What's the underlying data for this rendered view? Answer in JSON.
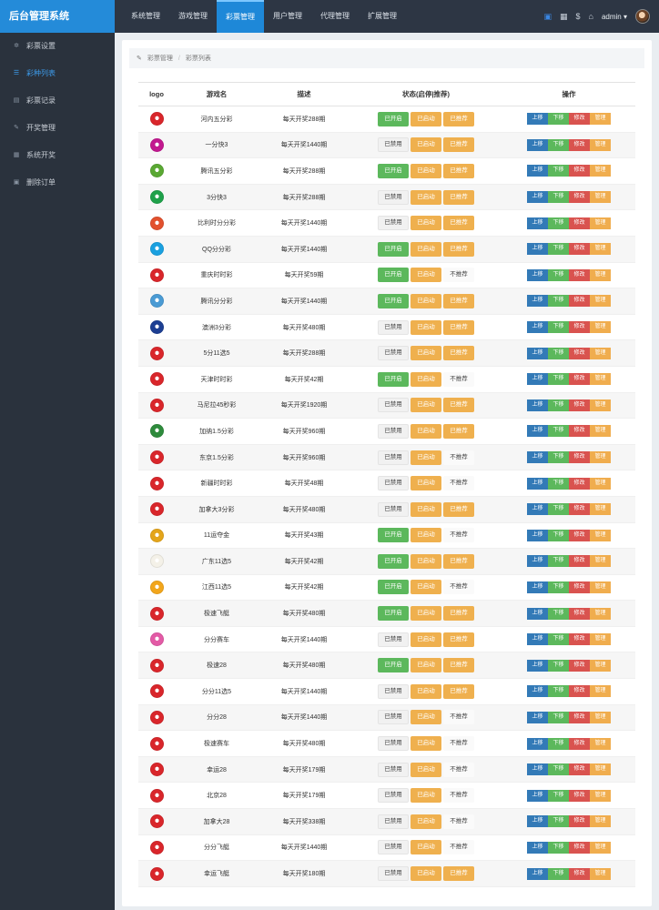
{
  "app": {
    "title": "后台管理系统"
  },
  "topnav": [
    {
      "label": "系统管理",
      "active": false
    },
    {
      "label": "游戏管理",
      "active": false
    },
    {
      "label": "彩票管理",
      "active": true
    },
    {
      "label": "用户管理",
      "active": false
    },
    {
      "label": "代理管理",
      "active": false
    },
    {
      "label": "扩展管理",
      "active": false
    }
  ],
  "header": {
    "user": "admin",
    "dollar": "$",
    "caret": "▾"
  },
  "sidebar": [
    {
      "label": "彩票设置",
      "icon": "✲",
      "active": false
    },
    {
      "label": "彩种列表",
      "icon": "☰",
      "active": true
    },
    {
      "label": "彩票记录",
      "icon": "▤",
      "active": false
    },
    {
      "label": "开奖管理",
      "icon": "✎",
      "active": false
    },
    {
      "label": "系统开奖",
      "icon": "▦",
      "active": false
    },
    {
      "label": "删除订单",
      "icon": "▣",
      "active": false
    }
  ],
  "breadcrumb": {
    "icon": "✎",
    "root": "彩票管理",
    "sep": "/",
    "current": "彩票列表"
  },
  "table": {
    "headers": {
      "logo": "logo",
      "name": "游戏名",
      "desc": "描述",
      "status": "状态(启停|推荐)",
      "ops": "操作"
    },
    "buttons": {
      "up": "上移",
      "down": "下移",
      "edit": "修改",
      "manage": "管理"
    },
    "status_labels": {
      "on": "已开启",
      "off": "已禁用",
      "launched": "已启动",
      "rec": "已推荐",
      "norec": "不推荐"
    },
    "rows": [
      {
        "name": "河内五分彩",
        "desc": "每天开奖288期",
        "enabled": true,
        "recommended": true,
        "logo_color": "#d9262b"
      },
      {
        "name": "一分快3",
        "desc": "每天开奖1440期",
        "enabled": false,
        "recommended": true,
        "logo_color": "#c2188f"
      },
      {
        "name": "腾讯五分彩",
        "desc": "每天开奖288期",
        "enabled": true,
        "recommended": true,
        "logo_color": "#5aa833"
      },
      {
        "name": "3分快3",
        "desc": "每天开奖288期",
        "enabled": false,
        "recommended": true,
        "logo_color": "#1fa14a"
      },
      {
        "name": "比利时分分彩",
        "desc": "每天开奖1440期",
        "enabled": false,
        "recommended": true,
        "logo_color": "#e2512e"
      },
      {
        "name": "QQ分分彩",
        "desc": "每天开奖1440期",
        "enabled": true,
        "recommended": true,
        "logo_color": "#1aa0e0"
      },
      {
        "name": "重庆时时彩",
        "desc": "每天开奖59期",
        "enabled": true,
        "recommended": false,
        "logo_color": "#d9262b"
      },
      {
        "name": "腾讯分分彩",
        "desc": "每天开奖1440期",
        "enabled": true,
        "recommended": true,
        "logo_color": "#4a9bd4"
      },
      {
        "name": "澳洲3分彩",
        "desc": "每天开奖480期",
        "enabled": false,
        "recommended": true,
        "logo_color": "#1d3f93"
      },
      {
        "name": "5分11选5",
        "desc": "每天开奖288期",
        "enabled": false,
        "recommended": true,
        "logo_color": "#d9262b"
      },
      {
        "name": "天津时时彩",
        "desc": "每天开奖42期",
        "enabled": true,
        "recommended": false,
        "logo_color": "#d9262b"
      },
      {
        "name": "马尼拉45秒彩",
        "desc": "每天开奖1920期",
        "enabled": false,
        "recommended": true,
        "logo_color": "#d9262b"
      },
      {
        "name": "加纳1.5分彩",
        "desc": "每天开奖960期",
        "enabled": false,
        "recommended": true,
        "logo_color": "#2e8b3c"
      },
      {
        "name": "东京1.5分彩",
        "desc": "每天开奖960期",
        "enabled": false,
        "recommended": false,
        "logo_color": "#d9262b"
      },
      {
        "name": "新疆时时彩",
        "desc": "每天开奖48期",
        "enabled": false,
        "recommended": false,
        "logo_color": "#d9262b"
      },
      {
        "name": "加拿大3分彩",
        "desc": "每天开奖480期",
        "enabled": false,
        "recommended": true,
        "logo_color": "#d9262b"
      },
      {
        "name": "11运夺金",
        "desc": "每天开奖43期",
        "enabled": true,
        "recommended": false,
        "logo_color": "#e4a51b"
      },
      {
        "name": "广东11选5",
        "desc": "每天开奖42期",
        "enabled": true,
        "recommended": true,
        "logo_color": "#f4f1e8"
      },
      {
        "name": "江西11选5",
        "desc": "每天开奖42期",
        "enabled": true,
        "recommended": false,
        "logo_color": "#f2a61c"
      },
      {
        "name": "极速飞艇",
        "desc": "每天开奖480期",
        "enabled": true,
        "recommended": true,
        "logo_color": "#d9262b"
      },
      {
        "name": "分分赛车",
        "desc": "每天开奖1440期",
        "enabled": false,
        "recommended": true,
        "logo_color": "#e35aa6"
      },
      {
        "name": "极速28",
        "desc": "每天开奖480期",
        "enabled": true,
        "recommended": true,
        "logo_color": "#d9262b"
      },
      {
        "name": "分分11选5",
        "desc": "每天开奖1440期",
        "enabled": false,
        "recommended": true,
        "logo_color": "#d9262b"
      },
      {
        "name": "分分28",
        "desc": "每天开奖1440期",
        "enabled": false,
        "recommended": false,
        "logo_color": "#d9262b"
      },
      {
        "name": "极速赛车",
        "desc": "每天开奖480期",
        "enabled": false,
        "recommended": false,
        "logo_color": "#d9262b"
      },
      {
        "name": "幸运28",
        "desc": "每天开奖179期",
        "enabled": false,
        "recommended": false,
        "logo_color": "#d9262b"
      },
      {
        "name": "北京28",
        "desc": "每天开奖179期",
        "enabled": false,
        "recommended": false,
        "logo_color": "#d9262b"
      },
      {
        "name": "加拿大28",
        "desc": "每天开奖338期",
        "enabled": false,
        "recommended": false,
        "logo_color": "#d9262b"
      },
      {
        "name": "分分飞艇",
        "desc": "每天开奖1440期",
        "enabled": false,
        "recommended": false,
        "logo_color": "#d9262b"
      },
      {
        "name": "幸运飞艇",
        "desc": "每天开奖180期",
        "enabled": false,
        "recommended": true,
        "logo_color": "#d9262b"
      }
    ]
  }
}
